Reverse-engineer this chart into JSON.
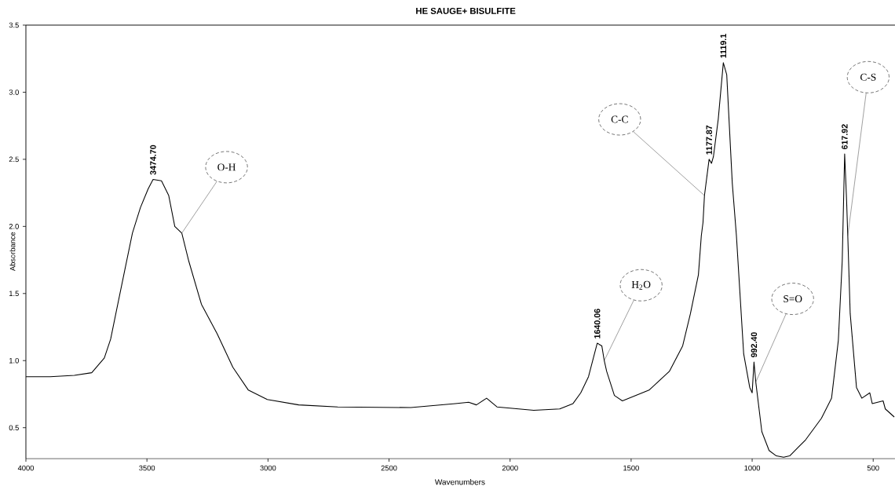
{
  "chart_data": {
    "type": "line",
    "title": "HE SAUGE+ BISULFITE",
    "xlabel": "Wavenumbers",
    "ylabel": "Absorbance",
    "x": [
      4000,
      3900,
      3800,
      3728,
      3676,
      3650,
      3624,
      3592,
      3560,
      3527,
      3495,
      3474.7,
      3440,
      3410,
      3385,
      3356,
      3327,
      3275,
      3210,
      3145,
      3081,
      3003,
      2873,
      2712,
      2410,
      2226,
      2171,
      2139,
      2097,
      2054,
      1902,
      1795,
      1740,
      1708,
      1676,
      1640.06,
      1621,
      1611,
      1601,
      1569,
      1536,
      1426,
      1342,
      1287,
      1255,
      1222,
      1210,
      1203,
      1197,
      1177.87,
      1168,
      1160,
      1140,
      1119.1,
      1105,
      1082,
      1065,
      1035,
      1010,
      1000,
      992.4,
      985,
      960,
      930,
      900,
      870,
      845,
      779,
      714,
      672,
      644,
      628,
      617.92,
      610,
      605,
      595,
      569,
      547,
      514,
      504,
      459,
      450,
      413
    ],
    "values": [
      0.88,
      0.88,
      0.89,
      0.91,
      1.02,
      1.16,
      1.39,
      1.67,
      1.95,
      2.14,
      2.28,
      2.35,
      2.34,
      2.23,
      2.0,
      1.95,
      1.74,
      1.42,
      1.2,
      0.95,
      0.78,
      0.71,
      0.67,
      0.655,
      0.65,
      0.68,
      0.69,
      0.67,
      0.72,
      0.655,
      0.63,
      0.64,
      0.68,
      0.76,
      0.88,
      1.13,
      1.11,
      1.0,
      0.92,
      0.74,
      0.7,
      0.78,
      0.92,
      1.11,
      1.35,
      1.64,
      1.93,
      2.03,
      2.23,
      2.5,
      2.47,
      2.52,
      2.8,
      3.22,
      3.13,
      2.32,
      1.93,
      1.05,
      0.8,
      0.76,
      0.99,
      0.84,
      0.47,
      0.33,
      0.29,
      0.28,
      0.29,
      0.41,
      0.57,
      0.72,
      1.15,
      1.74,
      2.54,
      2.2,
      1.93,
      1.35,
      0.8,
      0.72,
      0.76,
      0.68,
      0.7,
      0.64,
      0.58
    ],
    "color": "#000000",
    "xlim": [
      4000,
      410
    ],
    "ylim": [
      0.27,
      3.5
    ],
    "xticks": [
      4000,
      3500,
      3000,
      2500,
      2000,
      1500,
      1000,
      500
    ],
    "yticks": [
      0.5,
      {
        "value": 1.0,
        "label": "1.0"
      },
      1.5,
      {
        "value": 2.0,
        "label": "2.0"
      },
      2.5,
      {
        "value": 3.0,
        "label": "3.0"
      },
      3.5
    ],
    "annotations": [
      {
        "text": "3474.70",
        "x": 3474.7,
        "y": 2.35
      },
      {
        "text": "1640.06",
        "x": 1640.06,
        "y": 1.13
      },
      {
        "text": "1177.87",
        "x": 1177.87,
        "y": 2.5
      },
      {
        "text": "1119.1",
        "x": 1119.1,
        "y": 3.22
      },
      {
        "text": "992.40",
        "x": 992.4,
        "y": 0.99
      },
      {
        "text": "617.92",
        "x": 617.92,
        "y": 2.54
      },
      {
        "text": "O-H",
        "x": 3356,
        "y": 1.95
      },
      {
        "text": "C-C",
        "x": 1197,
        "y": 2.23
      },
      {
        "text": "H$_{2}$O",
        "x": 1611,
        "y": 1.0
      },
      {
        "text": "S=O",
        "x": 985,
        "y": 0.84
      },
      {
        "text": "C-S",
        "x": 605,
        "y": 1.93
      }
    ]
  }
}
